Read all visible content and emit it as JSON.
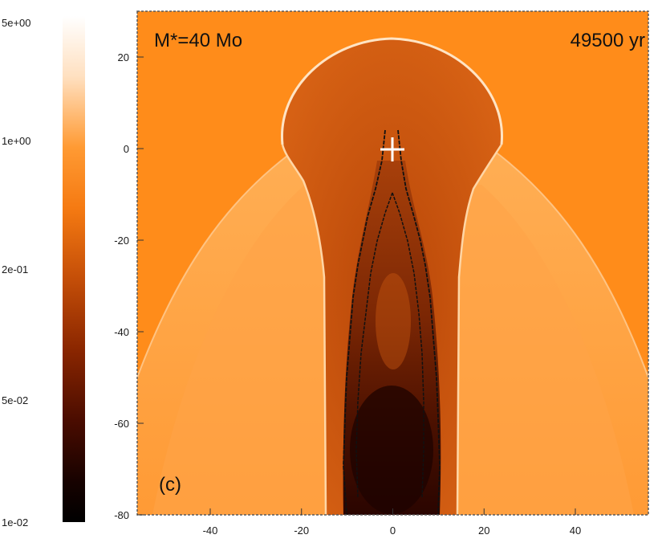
{
  "chart_data": {
    "type": "heatmap",
    "title": "",
    "panel_label": "(c)",
    "annotations": {
      "mass_label": "M*=40 Mo",
      "time_label": "49500 yr"
    },
    "xlabel": "",
    "ylabel": "",
    "xlim": [
      -56,
      56
    ],
    "ylim": [
      -80,
      30
    ],
    "x_ticks": [
      -40,
      -20,
      0,
      20,
      40
    ],
    "y_ticks": [
      20,
      0,
      -20,
      -40,
      -60,
      -80
    ],
    "x_tick_labels": [
      "-40",
      "-20",
      "0",
      "20",
      "40"
    ],
    "y_tick_labels": [
      "20",
      "0",
      "-20",
      "-40",
      "-60",
      "-80"
    ],
    "colorbar": {
      "scale": "log",
      "min": 0.01,
      "max": 5.0,
      "tick_labels": [
        "5e+00",
        "1e+00",
        "2e-01",
        "5e-02",
        "1e-02"
      ],
      "tick_values": [
        5.0,
        1.0,
        0.2,
        0.05,
        0.01
      ],
      "colors": [
        "#000000",
        "#3a0600",
        "#8a2200",
        "#d65500",
        "#ff8f1e",
        "#ffb066",
        "#ffe8d0",
        "#ffffff"
      ]
    },
    "star_position": [
      0,
      0
    ],
    "structures": {
      "ambient_color": "#ff8c1a",
      "bubble_color": "#c95410",
      "shell_color": "#ffe8cc",
      "bowshock_color": "#ffb060",
      "tail_color": "#3a0800",
      "contour_color": "#111111"
    },
    "grid": false
  }
}
